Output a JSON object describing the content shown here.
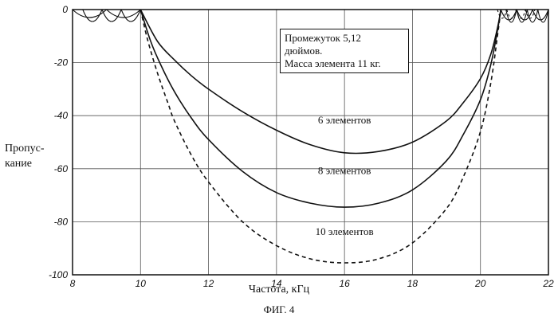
{
  "chart_data": {
    "type": "line",
    "title": "",
    "ylabel_lines": [
      "Пропус-",
      "кание"
    ],
    "xlabel": "Частота, кГц",
    "figure_label": "ФИГ. 4",
    "xlim": [
      8,
      22
    ],
    "ylim": [
      -100,
      0
    ],
    "xticks": [
      "8",
      "10",
      "12",
      "14",
      "16",
      "18",
      "20",
      "22"
    ],
    "yticks": [
      "0",
      "-20",
      "-40",
      "-60",
      "-80",
      "-100"
    ],
    "grid": true,
    "annotation_lines": [
      "Промежуток 5,12",
      "дюймов.",
      "Масса элемента 11 кг."
    ],
    "series": [
      {
        "name": "6 элементов",
        "style": "solid",
        "label_pos": [
          16,
          -43
        ],
        "x": [
          10,
          10.5,
          11,
          11.5,
          12,
          13,
          14,
          15,
          16,
          17,
          18,
          19,
          19.5,
          20,
          20.3,
          20.5,
          20.6
        ],
        "y": [
          0,
          -12,
          -19,
          -25,
          -30,
          -38.5,
          -45.5,
          -51,
          -54,
          -53.5,
          -50,
          -42,
          -35,
          -26,
          -17,
          -7,
          0
        ]
      },
      {
        "name": "8 элементов",
        "style": "solid",
        "label_pos": [
          16,
          -62
        ],
        "x": [
          10,
          10.3,
          10.6,
          11,
          11.5,
          12,
          13,
          14,
          15,
          16,
          17,
          18,
          19,
          19.5,
          20,
          20.3,
          20.5,
          20.6
        ],
        "y": [
          0,
          -12,
          -21,
          -31,
          -41,
          -49,
          -61,
          -69,
          -73,
          -74.5,
          -73,
          -68,
          -57,
          -47,
          -34,
          -21,
          -8,
          0
        ]
      },
      {
        "name": "10 элементов",
        "style": "dashed",
        "label_pos": [
          16,
          -85
        ],
        "x": [
          10,
          10.2,
          10.5,
          10.8,
          11,
          11.5,
          12,
          13,
          14,
          15,
          16,
          17,
          18,
          19,
          19.5,
          20,
          20.3,
          20.5,
          20.6
        ],
        "y": [
          0,
          -11,
          -24,
          -35,
          -42,
          -55,
          -65,
          -80,
          -89,
          -94,
          -95.5,
          -94,
          -88,
          -75,
          -63,
          -46,
          -28,
          -10,
          0
        ]
      }
    ]
  }
}
